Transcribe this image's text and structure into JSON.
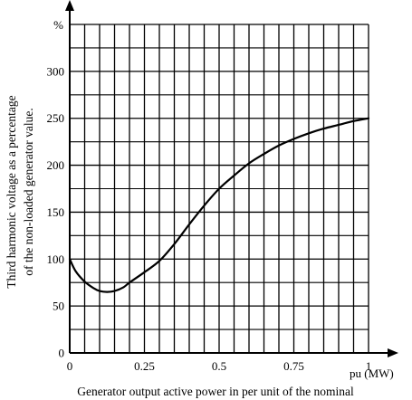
{
  "chart_data": {
    "type": "line",
    "title": "",
    "xlabel": "Generator output active power in per unit of the nominal",
    "ylabel_line1": "Third harmonic voltage as a percentage",
    "ylabel_line2": "of the non-loaded generator value.",
    "x_unit": "pu (MW)",
    "y_unit": "%",
    "xlim": [
      0,
      1
    ],
    "ylim": [
      0,
      350
    ],
    "x_ticks": [
      0,
      0.25,
      0.5,
      0.75,
      1
    ],
    "x_tick_labels": [
      "0",
      "0.25",
      "0.5",
      "0.75",
      "1"
    ],
    "y_ticks": [
      0,
      50,
      100,
      150,
      200,
      250,
      300
    ],
    "y_tick_labels": [
      "0",
      "50",
      "100",
      "150",
      "200",
      "250",
      "300"
    ],
    "grid": true,
    "series": [
      {
        "x": [
          0,
          0.02,
          0.05,
          0.08,
          0.1,
          0.125,
          0.15,
          0.18,
          0.2,
          0.25,
          0.3,
          0.35,
          0.4,
          0.45,
          0.5,
          0.55,
          0.6,
          0.65,
          0.7,
          0.75,
          0.8,
          0.85,
          0.9,
          0.95,
          1.0
        ],
        "y": [
          100,
          87,
          76,
          69,
          66,
          65,
          66,
          70,
          75,
          86,
          98,
          116,
          137,
          157,
          175,
          189,
          202,
          212,
          221,
          228,
          234,
          239,
          243,
          247,
          250
        ]
      }
    ]
  }
}
